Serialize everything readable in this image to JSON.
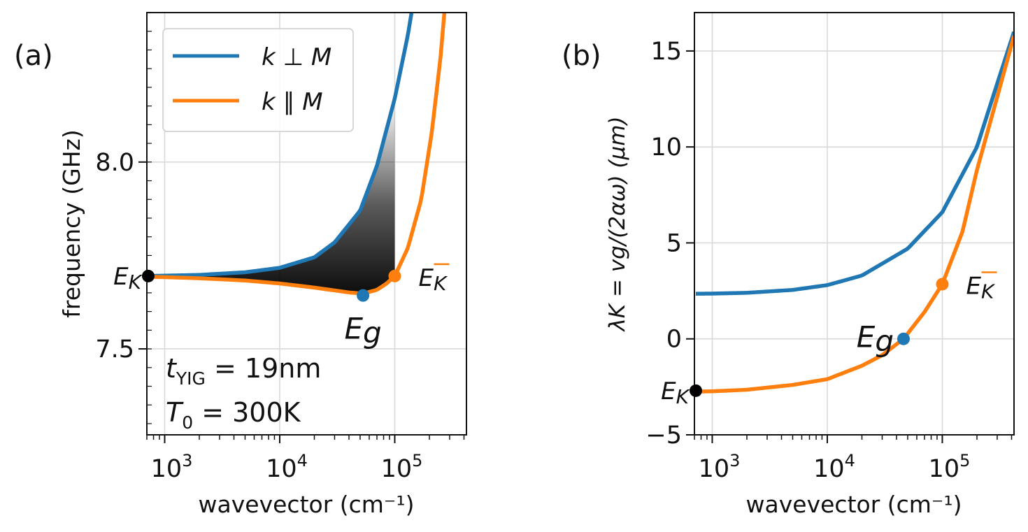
{
  "panel_a_label": "(a)",
  "panel_b_label": "(b)",
  "colors": {
    "perp": "#1f77b4",
    "para": "#ff7f0e",
    "grid": "#d9d9d9",
    "axis": "#111111",
    "marker_ek": "#000000"
  },
  "chart_data": [
    {
      "type": "line",
      "panel": "(a)",
      "xscale": "log",
      "xlabel": "wavevector (cm⁻¹)",
      "ylabel": "frequency (GHz)",
      "xlim": [
        700,
        420000
      ],
      "ylim": [
        7.27,
        8.4
      ],
      "x_ticks": [
        {
          "value": 1000,
          "base": "10",
          "exp": "3"
        },
        {
          "value": 10000,
          "base": "10",
          "exp": "4"
        },
        {
          "value": 100000,
          "base": "10",
          "exp": "5"
        }
      ],
      "y_ticks": [
        {
          "value": 7.5,
          "label": "7.5"
        },
        {
          "value": 8.0,
          "label": "8.0"
        }
      ],
      "grid": true,
      "legend": {
        "position": "top-left",
        "entries": [
          {
            "label": "k ⊥ M",
            "color": "#1f77b4"
          },
          {
            "label": "k ∥ M",
            "color": "#ff7f0e"
          }
        ]
      },
      "series": [
        {
          "name": "k ⊥ M",
          "color": "#1f77b4",
          "points": [
            [
              720,
              7.695
            ],
            [
              1000,
              7.696
            ],
            [
              2000,
              7.698
            ],
            [
              5000,
              7.705
            ],
            [
              10000,
              7.717
            ],
            [
              20000,
              7.745
            ],
            [
              30000,
              7.785
            ],
            [
              50000,
              7.87
            ],
            [
              70000,
              7.99
            ],
            [
              100000,
              8.17
            ],
            [
              130000,
              8.34
            ],
            [
              140000,
              8.4
            ]
          ]
        },
        {
          "name": "k ∥ M",
          "color": "#ff7f0e",
          "points": [
            [
              720,
              7.693
            ],
            [
              1000,
              7.692
            ],
            [
              2000,
              7.689
            ],
            [
              5000,
              7.683
            ],
            [
              10000,
              7.675
            ],
            [
              20000,
              7.664
            ],
            [
              40000,
              7.651
            ],
            [
              53000,
              7.648
            ],
            [
              70000,
              7.658
            ],
            [
              85000,
              7.675
            ],
            [
              100000,
              7.695
            ],
            [
              130000,
              7.77
            ],
            [
              170000,
              7.9
            ],
            [
              210000,
              8.08
            ],
            [
              250000,
              8.28
            ],
            [
              270000,
              8.4
            ]
          ]
        }
      ],
      "markers": [
        {
          "label": "E",
          "sub": "K",
          "x": 720,
          "y": 7.695,
          "color": "#000000",
          "over": false
        },
        {
          "label": "E",
          "sub": "g",
          "x": 53000,
          "y": 7.643,
          "color": "#1f77b4",
          "over": false
        },
        {
          "label": "E",
          "sub": "K",
          "x": 100000,
          "y": 7.695,
          "color": "#ff7f0e",
          "over": true
        }
      ],
      "annotations": {
        "thickness": {
          "symbol": "t",
          "sub": "YIG",
          "text": " = 19nm"
        },
        "temperature": {
          "symbol": "T",
          "sub": "0",
          "text": " = 300K"
        }
      }
    },
    {
      "type": "line",
      "panel": "(b)",
      "xscale": "log",
      "xlabel": "wavevector (cm⁻¹)",
      "ylabel": "λK = vg/(2αω) (μm)",
      "xlim": [
        700,
        420000
      ],
      "ylim": [
        -5,
        17
      ],
      "x_ticks": [
        {
          "value": 1000,
          "base": "10",
          "exp": "3"
        },
        {
          "value": 10000,
          "base": "10",
          "exp": "4"
        },
        {
          "value": 100000,
          "base": "10",
          "exp": "5"
        }
      ],
      "y_ticks": [
        {
          "value": -5,
          "label": "−5"
        },
        {
          "value": 0,
          "label": "0"
        },
        {
          "value": 5,
          "label": "5"
        },
        {
          "value": 10,
          "label": "10"
        },
        {
          "value": 15,
          "label": "15"
        }
      ],
      "grid": true,
      "series": [
        {
          "name": "k ⊥ M",
          "color": "#1f77b4",
          "points": [
            [
              720,
              2.35
            ],
            [
              1000,
              2.36
            ],
            [
              2000,
              2.4
            ],
            [
              5000,
              2.55
            ],
            [
              10000,
              2.8
            ],
            [
              20000,
              3.3
            ],
            [
              50000,
              4.7
            ],
            [
              100000,
              6.6
            ],
            [
              200000,
              10.0
            ],
            [
              300000,
              13.3
            ],
            [
              420000,
              16.0
            ]
          ]
        },
        {
          "name": "k ∥ M",
          "color": "#ff7f0e",
          "points": [
            [
              720,
              -2.75
            ],
            [
              1000,
              -2.73
            ],
            [
              2000,
              -2.65
            ],
            [
              5000,
              -2.4
            ],
            [
              10000,
              -2.1
            ],
            [
              20000,
              -1.4
            ],
            [
              30000,
              -0.85
            ],
            [
              46000,
              0.0
            ],
            [
              70000,
              1.4
            ],
            [
              100000,
              2.85
            ],
            [
              150000,
              5.6
            ],
            [
              200000,
              8.8
            ],
            [
              300000,
              12.6
            ],
            [
              420000,
              15.8
            ]
          ]
        }
      ],
      "markers": [
        {
          "label": "E",
          "sub": "K",
          "x": 720,
          "y": -2.7,
          "color": "#000000",
          "over": false
        },
        {
          "label": "E",
          "sub": "g",
          "x": 46000,
          "y": 0.0,
          "color": "#1f77b4",
          "over": false
        },
        {
          "label": "E",
          "sub": "K",
          "x": 100000,
          "y": 2.85,
          "color": "#ff7f0e",
          "over": true
        }
      ]
    }
  ]
}
